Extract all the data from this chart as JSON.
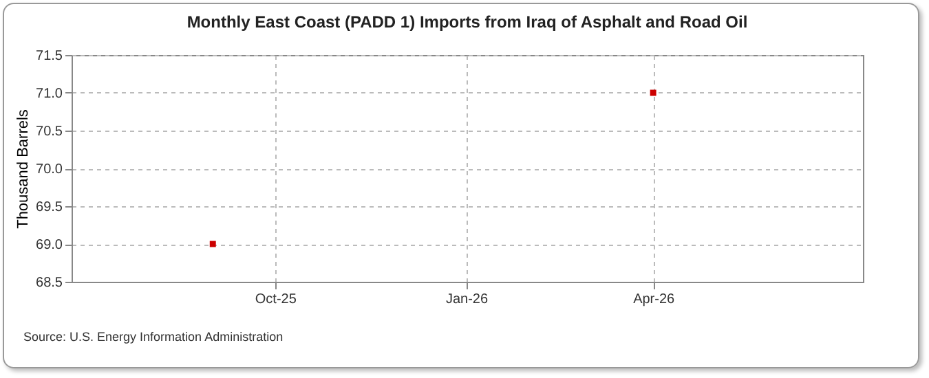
{
  "chart_data": {
    "type": "scatter",
    "title": "Monthly East Coast (PADD 1) Imports from Iraq of Asphalt and Road Oil",
    "ylabel": "Thousand Barrels",
    "x": [
      "2025-09",
      "2026-04"
    ],
    "series": [
      {
        "color": "#cc0000",
        "values": [
          69,
          71
        ]
      }
    ],
    "xlim": [
      "2025-06-25",
      "2026-07-11"
    ],
    "xticks": [
      {
        "value": "2025-10",
        "label": "Oct-25"
      },
      {
        "value": "2026-01",
        "label": "Jan-26"
      },
      {
        "value": "2026-04",
        "label": "Apr-26"
      }
    ],
    "ylim": [
      68.5,
      71.5
    ],
    "yticks": [
      68.5,
      {
        "value": 69,
        "label": "69.0"
      },
      69.5,
      {
        "value": 70,
        "label": "70.0"
      },
      70.5,
      {
        "value": 71,
        "label": "71.0"
      },
      71.5
    ],
    "grid": true,
    "marker": "square",
    "annotations": [
      "Source: U.S. Energy Information Administration"
    ]
  }
}
